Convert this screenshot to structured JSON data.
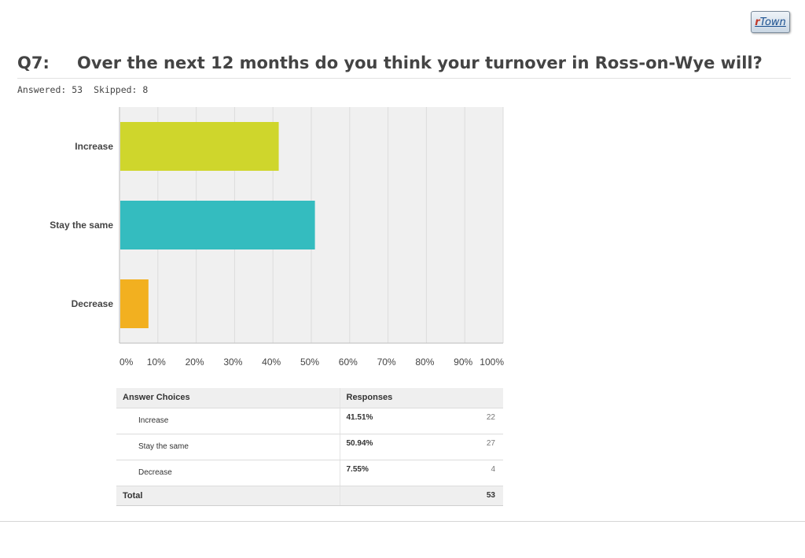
{
  "logo": {
    "prefix": "r",
    "text": "Town"
  },
  "question": {
    "number": "Q7:",
    "text": "Over the next 12 months do you think your turnover in Ross-on-Wye will?"
  },
  "stats": {
    "answered": "Answered: 53",
    "skipped": "Skipped: 8"
  },
  "chart_data": {
    "type": "bar",
    "orientation": "horizontal",
    "categories": [
      "Increase",
      "Stay the same",
      "Decrease"
    ],
    "values": [
      41.51,
      50.94,
      7.55
    ],
    "colors": [
      "#cfd62c",
      "#34bcbf",
      "#f2b020"
    ],
    "xlim": [
      0,
      100
    ],
    "xticks": [
      "0%",
      "10%",
      "20%",
      "30%",
      "40%",
      "50%",
      "60%",
      "70%",
      "80%",
      "90%",
      "100%"
    ],
    "grid": true,
    "plot_background": "#f0f0f0",
    "title": "",
    "xlabel": "",
    "ylabel": ""
  },
  "table": {
    "headers": [
      "Answer Choices",
      "Responses",
      ""
    ],
    "rows": [
      {
        "choice": "Increase",
        "percent": "41.51%",
        "count": "22"
      },
      {
        "choice": "Stay the same",
        "percent": "50.94%",
        "count": "27"
      },
      {
        "choice": "Decrease",
        "percent": "7.55%",
        "count": "4"
      }
    ],
    "total_label": "Total",
    "total_count": "53"
  }
}
